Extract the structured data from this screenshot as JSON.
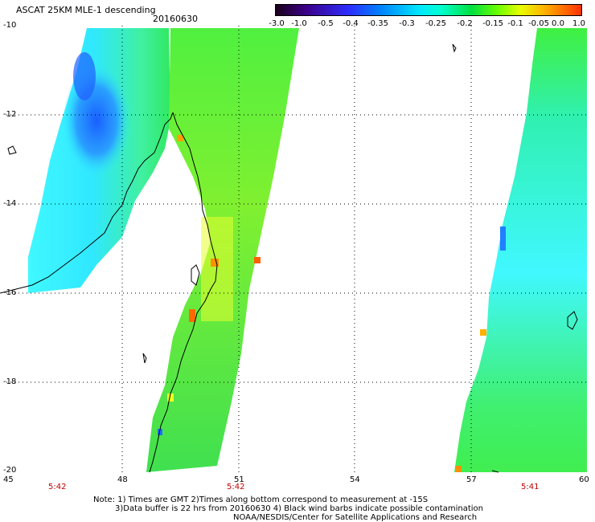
{
  "header": {
    "title": "ASCAT 25KM MLE-1 descending",
    "date": "20160630"
  },
  "colorbar": {
    "ticks": [
      "-3.0",
      "-1.0",
      "-0.5",
      "-0.4",
      "-0.35",
      "-0.3",
      "-0.25",
      "-0.2",
      "-0.15",
      "-0.1",
      "-0.05",
      "0.0",
      "1.0"
    ]
  },
  "axes": {
    "x_ticks": [
      "45",
      "48",
      "51",
      "54",
      "57",
      "60"
    ],
    "y_ticks": [
      "-10",
      "-12",
      "-14",
      "-16",
      "-18",
      "-20"
    ]
  },
  "times": [
    "5:42",
    "5:42",
    "5:41"
  ],
  "notes": {
    "line1": "Note: 1) Times are GMT 2)Times along bottom correspond to measurement at -15S",
    "line2": "3)Data buffer is 22 hrs from 20160630 4) Black wind barbs indicate possible contamination",
    "line3": "NOAA/NESDIS/Center for Satellite Applications and Research"
  },
  "colors": {
    "swath_blue": "#1a7fff",
    "swath_cyan": "#3ff0ff",
    "swath_green": "#4cf03c",
    "swath_yellow": "#e8ff10",
    "swath_orange": "#ff8a00",
    "grid": "#000000",
    "time_label": "#c00000"
  }
}
